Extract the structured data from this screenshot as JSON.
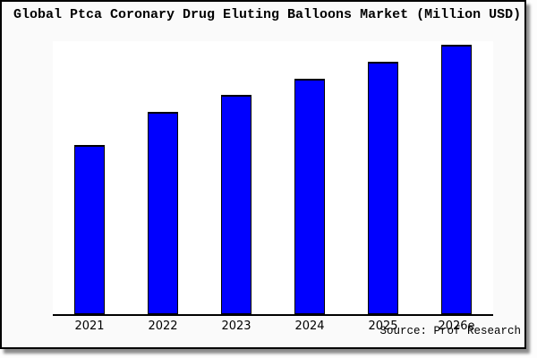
{
  "chart_data": {
    "type": "bar",
    "title": "Global Ptca Coronary Drug Eluting Balloons Market (Million USD)",
    "categories": [
      "2021",
      "2022",
      "2023",
      "2024",
      "2025",
      "2026e"
    ],
    "values": [
      62.8,
      75.1,
      81.4,
      87.4,
      93.7,
      100
    ],
    "value_units": "relative bar height (% of tallest bar); no y-axis scale or value labels are shown in the chart",
    "xlabel": "",
    "ylabel": "",
    "ylim": [
      0,
      101.3
    ],
    "grid": false,
    "legend": null,
    "bar_fill_color": "#0000ff",
    "bar_border_color": "#000000",
    "axis_color": "#000000",
    "source": "Source: Prof Research"
  }
}
